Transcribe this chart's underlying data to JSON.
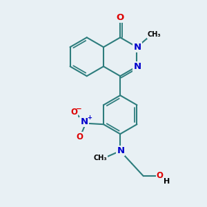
{
  "background_color": "#e8f0f4",
  "bond_color": "#2d7d7d",
  "bond_width": 1.5,
  "atom_colors": {
    "O": "#dd0000",
    "N": "#0000cc",
    "C": "#000000",
    "H": "#000000"
  },
  "font_size": 8.5,
  "fig_size": [
    3.0,
    3.0
  ],
  "dpi": 100
}
